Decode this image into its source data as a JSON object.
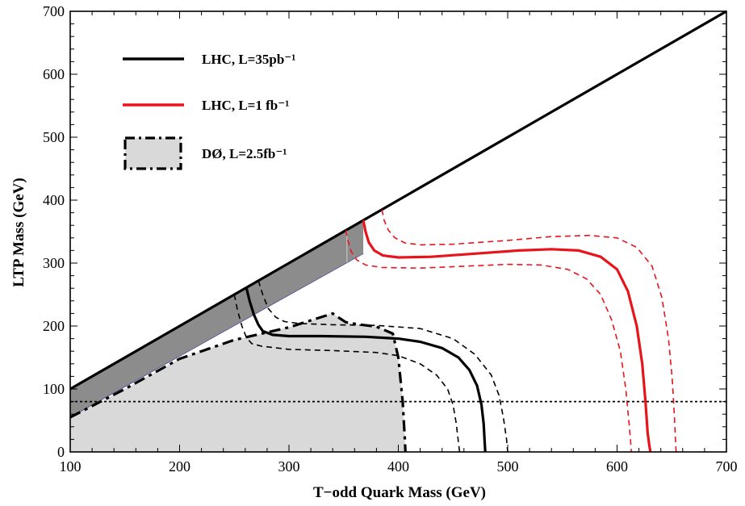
{
  "chart_data": {
    "type": "line",
    "title": "",
    "xlabel": "T−odd Quark Mass (GeV)",
    "ylabel": "LTP Mass (GeV)",
    "xlim": [
      100,
      700
    ],
    "ylim": [
      0,
      700
    ],
    "xticks": [
      100,
      200,
      300,
      400,
      500,
      600,
      700
    ],
    "yticks": [
      0,
      100,
      200,
      300,
      400,
      500,
      600,
      700
    ],
    "grid": false,
    "legend_position": "top-left",
    "legend": [
      {
        "label": "LHC, L=35pb⁻¹",
        "color": "#000000",
        "style": "solid"
      },
      {
        "label": "LHC, L=1 fb⁻¹",
        "color": "#e8141b",
        "style": "solid"
      },
      {
        "label": "DØ, L=2.5fb⁻¹",
        "color": "#000000",
        "style": "dash-dot",
        "fill": "#d9d9d9"
      }
    ],
    "series": [
      {
        "key": "diagonal",
        "color": "#000000",
        "style": "solid",
        "width": 3.2,
        "x": [
          100,
          700
        ],
        "y": [
          100,
          700
        ]
      },
      {
        "key": "dzero",
        "color": "#000000",
        "style": "dashdot",
        "width": 3.2,
        "x": [
          100,
          150,
          200,
          250,
          300,
          340,
          345,
          352,
          362,
          380,
          395,
          400,
          404,
          406,
          406.5
        ],
        "y": [
          55,
          100,
          148,
          178,
          198,
          220,
          214,
          206,
          203,
          199,
          188,
          150,
          80,
          20,
          0
        ]
      },
      {
        "key": "lhc35_central",
        "color": "#000000",
        "style": "solid",
        "width": 3.2,
        "x": [
          261,
          264,
          268,
          272,
          276,
          285,
          300,
          330,
          370,
          400,
          420,
          440,
          455,
          465,
          472,
          476,
          478,
          479,
          479.5
        ],
        "y": [
          261,
          240,
          218,
          202,
          192,
          186,
          184,
          184,
          183,
          180,
          175,
          165,
          150,
          130,
          105,
          75,
          45,
          15,
          0
        ]
      },
      {
        "key": "lhc35_lower",
        "color": "#000000",
        "style": "dashed",
        "width": 1.6,
        "x": [
          250,
          253,
          257,
          261,
          266,
          275,
          300,
          340,
          380,
          400,
          420,
          435,
          445,
          450,
          453,
          455,
          456
        ],
        "y": [
          250,
          225,
          200,
          182,
          172,
          168,
          163,
          161,
          158,
          153,
          140,
          122,
          100,
          75,
          45,
          15,
          0
        ]
      },
      {
        "key": "lhc35_upper",
        "color": "#000000",
        "style": "dashed",
        "width": 1.6,
        "x": [
          272,
          276,
          281,
          288,
          296,
          310,
          340,
          380,
          420,
          450,
          470,
          485,
          492,
          496,
          499,
          500
        ],
        "y": [
          272,
          250,
          228,
          214,
          207,
          204,
          202,
          201,
          196,
          180,
          155,
          122,
          90,
          55,
          20,
          0
        ]
      },
      {
        "key": "lhc1_central",
        "color": "#e8141b",
        "style": "solid",
        "width": 3.2,
        "x": [
          368,
          370,
          373,
          378,
          386,
          400,
          430,
          470,
          510,
          540,
          565,
          585,
          600,
          610,
          618,
          623,
          626,
          628,
          629.5,
          630.5
        ],
        "y": [
          368,
          350,
          333,
          320,
          312,
          309,
          310,
          315,
          320,
          322,
          320,
          310,
          290,
          255,
          200,
          140,
          80,
          30,
          10,
          0
        ]
      },
      {
        "key": "lhc1_lower",
        "color": "#e8141b",
        "style": "dashed",
        "width": 1.6,
        "x": [
          352,
          354,
          357,
          362,
          370,
          385,
          420,
          460,
          500,
          530,
          555,
          572,
          585,
          595,
          603,
          608,
          611,
          612.5,
          613
        ],
        "y": [
          352,
          335,
          318,
          305,
          297,
          293,
          292,
          295,
          298,
          297,
          290,
          275,
          250,
          210,
          160,
          100,
          45,
          15,
          0
        ]
      },
      {
        "key": "lhc1_upper",
        "color": "#e8141b",
        "style": "dashed",
        "width": 1.6,
        "x": [
          385,
          387,
          391,
          397,
          406,
          420,
          450,
          500,
          540,
          575,
          600,
          618,
          632,
          641,
          647,
          650.5,
          652.5,
          653.5,
          654
        ],
        "y": [
          385,
          368,
          352,
          340,
          332,
          329,
          330,
          336,
          342,
          344,
          340,
          325,
          295,
          245,
          180,
          115,
          55,
          15,
          0
        ]
      },
      {
        "key": "ltp_limit",
        "color": "#000000",
        "style": "dotted",
        "width": 1.8,
        "x": [
          100,
          700
        ],
        "y": [
          80,
          80
        ]
      }
    ],
    "regions": [
      {
        "key": "dzero_excluded",
        "color": "#d9d9d9",
        "x": [
          100,
          150,
          200,
          250,
          300,
          340,
          345,
          352,
          362,
          380,
          395,
          400,
          404,
          406,
          406.5,
          100
        ],
        "y": [
          55,
          100,
          148,
          178,
          198,
          220,
          214,
          206,
          203,
          199,
          188,
          150,
          80,
          20,
          0,
          0
        ]
      },
      {
        "key": "dark_band",
        "color": "#8c8c8c",
        "x": [
          100,
          368,
          368,
          100
        ],
        "y": [
          100,
          368,
          315,
          55
        ]
      }
    ]
  }
}
